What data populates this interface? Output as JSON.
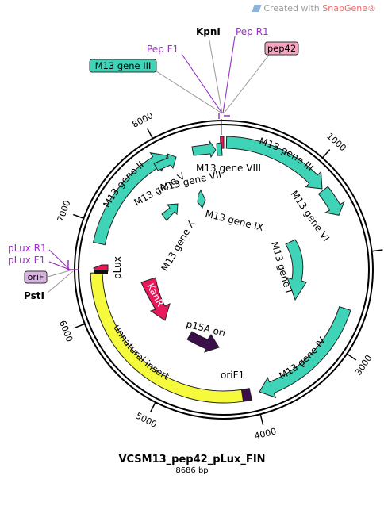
{
  "watermark": {
    "prefix": "Created with ",
    "brand": "SnapGene®"
  },
  "plasmid": {
    "name": "VCSM13_pep42_pLux_FIN",
    "length_label": "8686 bp"
  },
  "ticks": [
    "1000",
    "2000",
    "3000",
    "4000",
    "5000",
    "6000",
    "7000",
    "8000"
  ],
  "features": {
    "m13_gene_viii": "M13 gene VIII",
    "m13_gene_iii": "M13 gene III",
    "m13_gene_vi": "M13 gene VI",
    "m13_gene_i": "M13 gene I",
    "m13_gene_iv": "M13 gene IV",
    "orif1": "oriF1",
    "unnatural_insert": "unnatural insert",
    "plux": "pLux",
    "m13_gene_ii": "M13 gene II",
    "m13_gene_v": "M13 gene V",
    "m13_gene_vii": "M13 gene VII",
    "m13_gene_ix": "M13 gene IX",
    "m13_gene_x": "M13 gene X",
    "kanr": "KanR",
    "p15a_ori": "p15A ori"
  },
  "callouts": {
    "kpni": "KpnI",
    "pep_f1": "Pep F1",
    "pep_r1": "Pep R1",
    "pep42": "pep42",
    "m13_gene_iii": "M13 gene III",
    "plux_r1": "pLux R1",
    "plux_f1": "pLux F1",
    "orif": "oriF",
    "psti": "PstI"
  },
  "colors": {
    "gene": "#3fd4b8",
    "insert": "#f5fa3c",
    "kanr": "#e8185a",
    "ori": "#3a0f4a",
    "primer": "#9b30c8",
    "pep42_box": "#f5a5c0",
    "orif_box": "#d8b4e2"
  }
}
